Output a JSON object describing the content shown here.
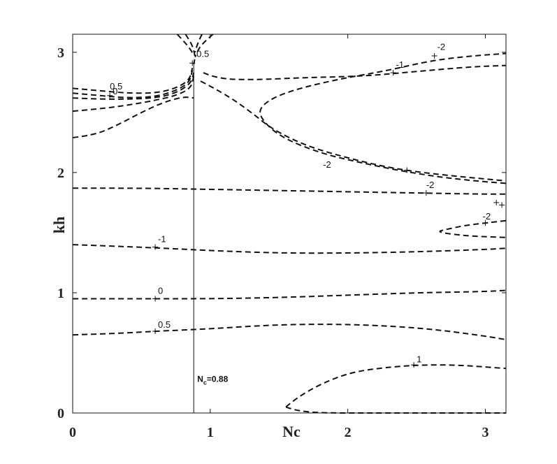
{
  "chart_data": {
    "type": "contour",
    "xlabel": "Nc",
    "ylabel": "kh",
    "xlim": [
      0,
      3.15
    ],
    "ylim": [
      0,
      3.15
    ],
    "xticks": [
      0,
      1,
      2,
      3
    ],
    "yticks": [
      0,
      1,
      2,
      3
    ],
    "xtick_labels": [
      "0",
      "1",
      "2",
      "3"
    ],
    "ytick_labels": [
      "0",
      "1",
      "2",
      "3"
    ],
    "grid": false,
    "line_style": "dashed",
    "reference_line": {
      "x": 0.88,
      "label_main": "N",
      "label_sub": "c",
      "label_tail": "=0.88"
    },
    "contours": [
      {
        "level": 1,
        "label": "1",
        "points": [
          [
            1.55,
            0.05
          ],
          [
            1.62,
            0.12
          ],
          [
            1.8,
            0.24
          ],
          [
            2.0,
            0.33
          ],
          [
            2.2,
            0.37
          ],
          [
            2.5,
            0.4
          ],
          [
            2.8,
            0.4
          ],
          [
            3.15,
            0.37
          ]
        ]
      },
      {
        "level": 1,
        "label": "",
        "points": [
          [
            1.55,
            0.05
          ],
          [
            1.62,
            0.02
          ],
          [
            1.8,
            0.0
          ],
          [
            2.2,
            0.0
          ],
          [
            2.6,
            0.0
          ],
          [
            3.15,
            0.0
          ]
        ]
      },
      {
        "level": 0.5,
        "label": "0.5",
        "points": [
          [
            0.0,
            0.65
          ],
          [
            0.3,
            0.66
          ],
          [
            0.6,
            0.68
          ],
          [
            1.0,
            0.7
          ],
          [
            1.4,
            0.73
          ],
          [
            1.8,
            0.74
          ],
          [
            2.2,
            0.73
          ],
          [
            2.6,
            0.7
          ],
          [
            3.0,
            0.64
          ],
          [
            3.15,
            0.61
          ]
        ]
      },
      {
        "level": 0,
        "label": "0",
        "points": [
          [
            0.0,
            0.95
          ],
          [
            0.5,
            0.95
          ],
          [
            1.0,
            0.95
          ],
          [
            1.5,
            0.96
          ],
          [
            2.0,
            0.98
          ],
          [
            2.5,
            1.0
          ],
          [
            3.0,
            1.01
          ],
          [
            3.15,
            1.02
          ]
        ]
      },
      {
        "level": -1,
        "label": "-1",
        "points": [
          [
            0.0,
            1.4
          ],
          [
            0.5,
            1.38
          ],
          [
            1.0,
            1.35
          ],
          [
            1.5,
            1.33
          ],
          [
            2.0,
            1.33
          ],
          [
            2.5,
            1.34
          ],
          [
            3.0,
            1.36
          ],
          [
            3.15,
            1.37
          ]
        ]
      },
      {
        "level": -2,
        "label": "-2",
        "points": [
          [
            0.0,
            1.87
          ],
          [
            0.5,
            1.87
          ],
          [
            1.0,
            1.86
          ],
          [
            1.5,
            1.85
          ],
          [
            2.0,
            1.84
          ],
          [
            2.5,
            1.83
          ],
          [
            3.0,
            1.82
          ],
          [
            3.15,
            1.82
          ]
        ]
      },
      {
        "level": -2,
        "label": "-2",
        "points": [
          [
            3.15,
            1.6
          ],
          [
            3.0,
            1.58
          ],
          [
            2.85,
            1.56
          ],
          [
            2.73,
            1.53
          ],
          [
            2.65,
            1.51
          ],
          [
            2.73,
            1.49
          ],
          [
            2.9,
            1.47
          ],
          [
            3.15,
            1.46
          ]
        ]
      },
      {
        "level": -2,
        "label": "-2",
        "points": [
          [
            0.93,
            2.76
          ],
          [
            1.1,
            2.66
          ],
          [
            1.3,
            2.5
          ],
          [
            1.45,
            2.36
          ],
          [
            1.7,
            2.22
          ],
          [
            2.0,
            2.12
          ],
          [
            2.3,
            2.04
          ],
          [
            2.6,
            1.99
          ],
          [
            3.15,
            1.93
          ]
        ]
      },
      {
        "level": -2,
        "label": "-2",
        "points": [
          [
            3.15,
            1.91
          ],
          [
            2.8,
            1.94
          ],
          [
            2.4,
            2.01
          ],
          [
            2.1,
            2.08
          ],
          [
            1.8,
            2.16
          ],
          [
            1.5,
            2.3
          ],
          [
            1.35,
            2.47
          ],
          [
            1.38,
            2.57
          ],
          [
            1.55,
            2.67
          ],
          [
            1.9,
            2.77
          ],
          [
            2.3,
            2.85
          ],
          [
            2.6,
            2.93
          ],
          [
            2.9,
            2.97
          ],
          [
            3.15,
            2.99
          ]
        ]
      },
      {
        "level": -1,
        "label": "-1",
        "points": [
          [
            0.95,
            2.83
          ],
          [
            1.05,
            2.78
          ],
          [
            1.3,
            2.77
          ],
          [
            1.7,
            2.79
          ],
          [
            2.1,
            2.8
          ],
          [
            2.5,
            2.84
          ],
          [
            2.9,
            2.88
          ],
          [
            3.15,
            2.89
          ]
        ]
      },
      {
        "level": 0.5,
        "label": "0.5",
        "points": [
          [
            0.0,
            2.7
          ],
          [
            0.2,
            2.68
          ],
          [
            0.4,
            2.66
          ],
          [
            0.6,
            2.66
          ],
          [
            0.75,
            2.7
          ],
          [
            0.85,
            2.77
          ],
          [
            0.87,
            2.87
          ]
        ]
      },
      {
        "level": 0,
        "label": "0",
        "points": [
          [
            0.0,
            2.66
          ],
          [
            0.2,
            2.64
          ],
          [
            0.4,
            2.62
          ],
          [
            0.6,
            2.63
          ],
          [
            0.75,
            2.68
          ],
          [
            0.85,
            2.75
          ],
          [
            0.87,
            2.85
          ]
        ]
      },
      {
        "level": -0.5,
        "label": "",
        "points": [
          [
            0.0,
            2.62
          ],
          [
            0.2,
            2.61
          ],
          [
            0.4,
            2.61
          ],
          [
            0.6,
            2.62
          ],
          [
            0.75,
            2.66
          ],
          [
            0.86,
            2.74
          ],
          [
            0.88,
            2.83
          ]
        ]
      },
      {
        "level": -1,
        "label": "",
        "points": [
          [
            0.0,
            2.51
          ],
          [
            0.2,
            2.53
          ],
          [
            0.4,
            2.56
          ],
          [
            0.6,
            2.6
          ],
          [
            0.75,
            2.64
          ],
          [
            0.86,
            2.7
          ],
          [
            0.88,
            2.8
          ]
        ]
      },
      {
        "level": -2,
        "label": "",
        "points": [
          [
            0.0,
            2.29
          ],
          [
            0.15,
            2.31
          ],
          [
            0.3,
            2.38
          ],
          [
            0.5,
            2.5
          ],
          [
            0.65,
            2.58
          ],
          [
            0.8,
            2.63
          ],
          [
            0.88,
            2.62
          ]
        ]
      },
      {
        "level": 0.5,
        "label": "0.5",
        "points": [
          [
            0.82,
            3.15
          ],
          [
            0.86,
            3.08
          ],
          [
            0.88,
            3.02
          ],
          [
            0.89,
            2.96
          ],
          [
            0.88,
            2.9
          ]
        ]
      },
      {
        "level": 0,
        "label": "",
        "points": [
          [
            0.76,
            3.15
          ],
          [
            0.8,
            3.1
          ],
          [
            0.84,
            3.05
          ],
          [
            0.88,
            2.98
          ]
        ]
      },
      {
        "level": -1,
        "label": "",
        "points": [
          [
            1.02,
            3.15
          ],
          [
            0.97,
            3.1
          ],
          [
            0.92,
            3.04
          ],
          [
            0.89,
            2.96
          ]
        ]
      },
      {
        "level": -2,
        "label": "",
        "points": [
          [
            0.94,
            3.15
          ],
          [
            0.91,
            3.08
          ],
          [
            0.89,
            3.0
          ]
        ]
      }
    ],
    "contour_labels": [
      {
        "text": "1",
        "x": 2.5,
        "y": 0.42
      },
      {
        "text": "0.5",
        "x": 0.62,
        "y": 0.71
      },
      {
        "text": "0",
        "x": 0.62,
        "y": 0.99
      },
      {
        "text": "-1",
        "x": 0.62,
        "y": 1.42
      },
      {
        "text": "-2",
        "x": 2.57,
        "y": 1.87
      },
      {
        "text": "-2",
        "x": 2.98,
        "y": 1.61
      },
      {
        "text": "-2",
        "x": 1.82,
        "y": 2.04
      },
      {
        "text": "-1",
        "x": 2.35,
        "y": 2.87
      },
      {
        "text": "-2",
        "x": 2.65,
        "y": 3.02
      },
      {
        "text": "0.5",
        "x": 0.27,
        "y": 2.69
      },
      {
        "text": "0",
        "x": 0.29,
        "y": 2.65
      },
      {
        "text": "0.5",
        "x": 0.9,
        "y": 2.96
      }
    ],
    "plus_markers": [
      {
        "x": 2.48,
        "y": 0.4
      },
      {
        "x": 0.6,
        "y": 0.68
      },
      {
        "x": 0.6,
        "y": 0.95
      },
      {
        "x": 0.6,
        "y": 1.38
      },
      {
        "x": 2.57,
        "y": 1.83
      },
      {
        "x": 3.0,
        "y": 1.58
      },
      {
        "x": 2.43,
        "y": 2.02
      },
      {
        "x": 2.33,
        "y": 2.83
      },
      {
        "x": 2.63,
        "y": 2.97
      },
      {
        "x": 0.27,
        "y": 2.64
      },
      {
        "x": 0.87,
        "y": 2.91
      },
      {
        "x": 3.08,
        "y": 1.75
      },
      {
        "x": 3.12,
        "y": 1.73
      }
    ]
  }
}
